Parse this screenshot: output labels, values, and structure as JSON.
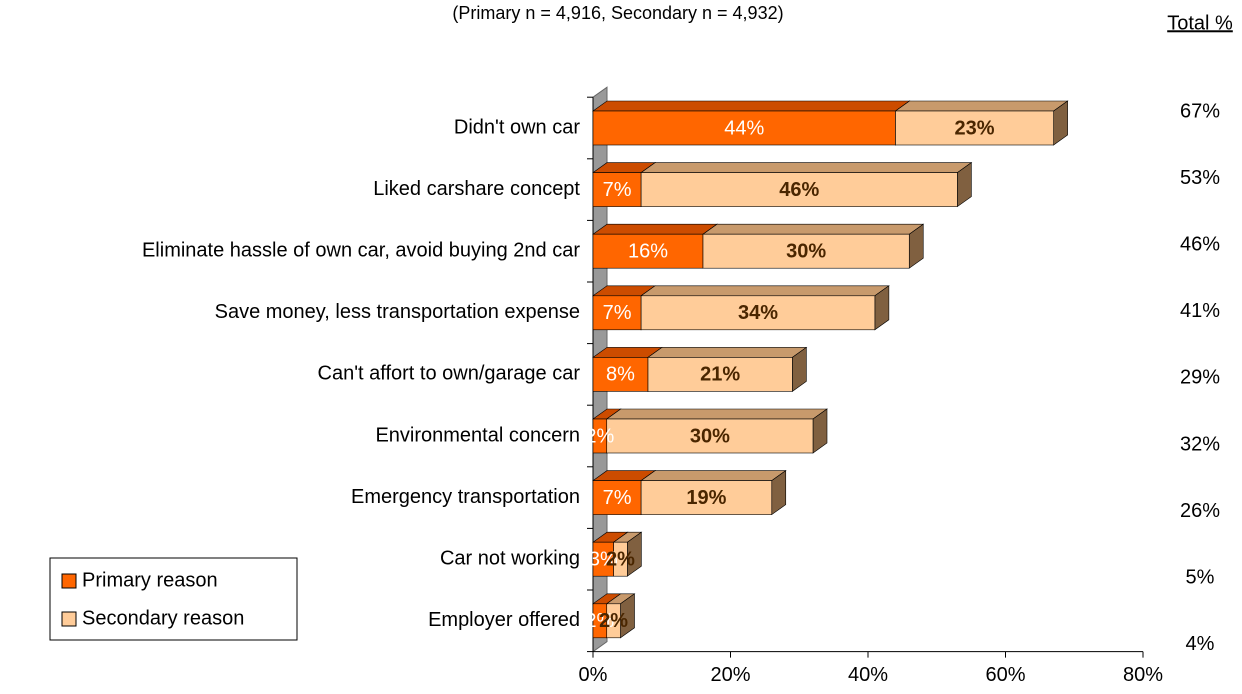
{
  "chart_data": {
    "type": "bar3d_stacked_horizontal",
    "subtitle": "(Primary n = 4,916, Secondary n = 4,932)",
    "totals_title": "Total %",
    "categories": [
      "Didn't own car",
      "Liked carshare concept",
      "Eliminate hassle of own car, avoid buying 2nd car",
      "Save money, less transportation expense",
      "Can't affort to own/garage car",
      "Environmental concern",
      "Emergency transportation",
      "Car not working",
      "Employer offered"
    ],
    "series": [
      {
        "name": "Primary reason",
        "color": "#ff6600",
        "values": [
          44,
          7,
          16,
          7,
          8,
          2,
          7,
          3,
          2
        ],
        "value_labels": [
          "44%",
          "7%",
          "16%",
          "7%",
          "8%",
          "2%",
          "7%",
          "3%",
          "2%"
        ]
      },
      {
        "name": "Secondary reason",
        "color": "#ffcc99",
        "values": [
          23,
          46,
          30,
          34,
          21,
          30,
          19,
          2,
          2
        ],
        "value_labels": [
          "23%",
          "46%",
          "30%",
          "34%",
          "21%",
          "30%",
          "19%",
          "2%",
          "2%"
        ]
      }
    ],
    "totals": {
      "values": [
        67,
        53,
        46,
        41,
        29,
        32,
        26,
        5,
        4
      ],
      "value_labels": [
        "67%",
        "53%",
        "46%",
        "41%",
        "29%",
        "32%",
        "26%",
        "5%",
        "4%"
      ]
    },
    "xlim": [
      0,
      80
    ],
    "xticks": [
      {
        "value": 0,
        "label": "0%"
      },
      {
        "value": 20,
        "label": "20%"
      },
      {
        "value": 40,
        "label": "40%"
      },
      {
        "value": 60,
        "label": "60%"
      },
      {
        "value": 80,
        "label": "80%"
      }
    ]
  }
}
